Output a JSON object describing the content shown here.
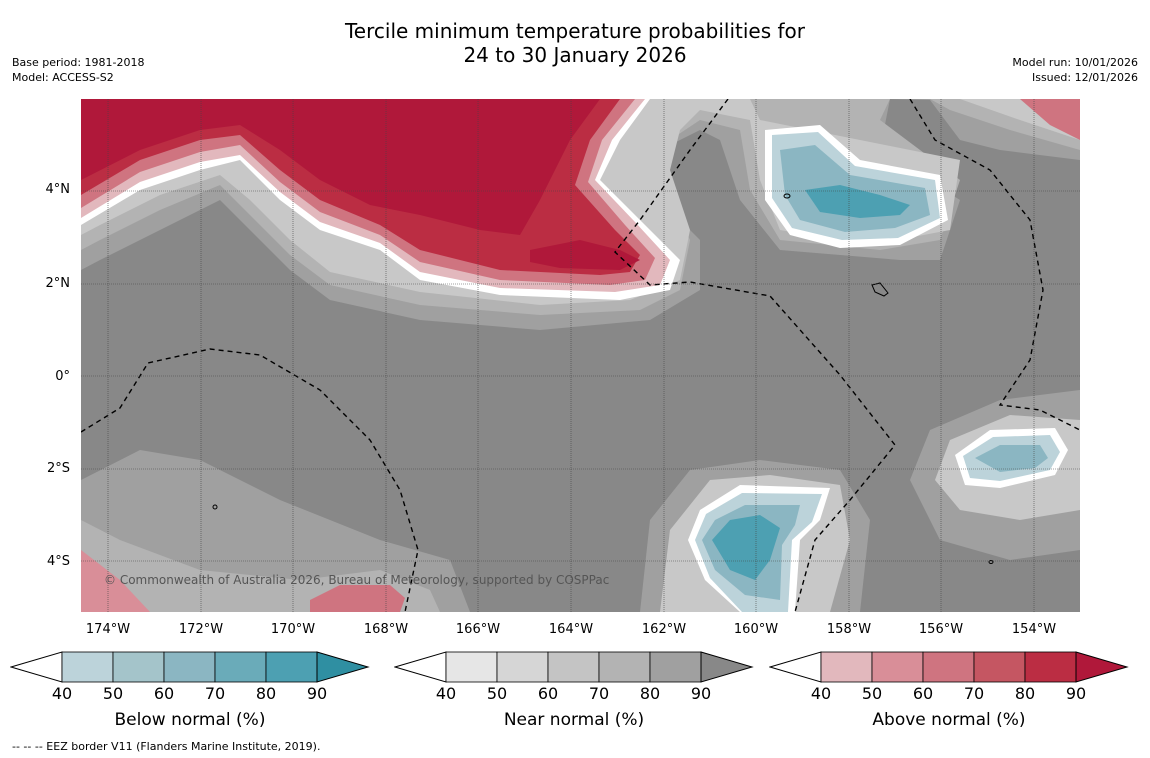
{
  "title": {
    "line1": "Tercile minimum temperature probabilities for",
    "line2": "24 to 30 January 2026"
  },
  "meta": {
    "base_period": "Base period: 1981-2018",
    "model": "Model: ACCESS-S2",
    "model_run": "Model run: 10/01/2026",
    "issued": "Issued: 12/01/2026"
  },
  "map": {
    "lat_labels": [
      "4°N",
      "2°N",
      "0°",
      "2°S",
      "4°S"
    ],
    "lon_labels": [
      "174°W",
      "172°W",
      "170°W",
      "168°W",
      "166°W",
      "164°W",
      "162°W",
      "160°W",
      "158°W",
      "156°W",
      "154°W"
    ],
    "credit": "© Commonwealth of Australia 2026, Bureau of Meteorology, supported by COSPPac",
    "background_color": "#888888"
  },
  "legends": [
    {
      "caption": "Below normal (%)",
      "ticks": [
        "40",
        "50",
        "60",
        "70",
        "80",
        "90"
      ],
      "colors": [
        "#bcd3da",
        "#a4c4ca",
        "#8bb6c2",
        "#6aabb9",
        "#4da0b2",
        "#2f8fa2"
      ]
    },
    {
      "caption": "Near normal (%)",
      "ticks": [
        "40",
        "50",
        "60",
        "70",
        "80",
        "90"
      ],
      "colors": [
        "#e6e6e6",
        "#d6d6d6",
        "#c4c4c4",
        "#b3b3b3",
        "#a0a0a0",
        "#888888"
      ]
    },
    {
      "caption": "Above normal (%)",
      "ticks": [
        "40",
        "50",
        "60",
        "70",
        "80",
        "90"
      ],
      "colors": [
        "#e2b8bd",
        "#d98e98",
        "#cf7480",
        "#c55662",
        "#bb2d43",
        "#b0183a"
      ]
    }
  ],
  "eez_note": "--  --  -- EEZ border V11 (Flanders Marine Institute, 2019)."
}
